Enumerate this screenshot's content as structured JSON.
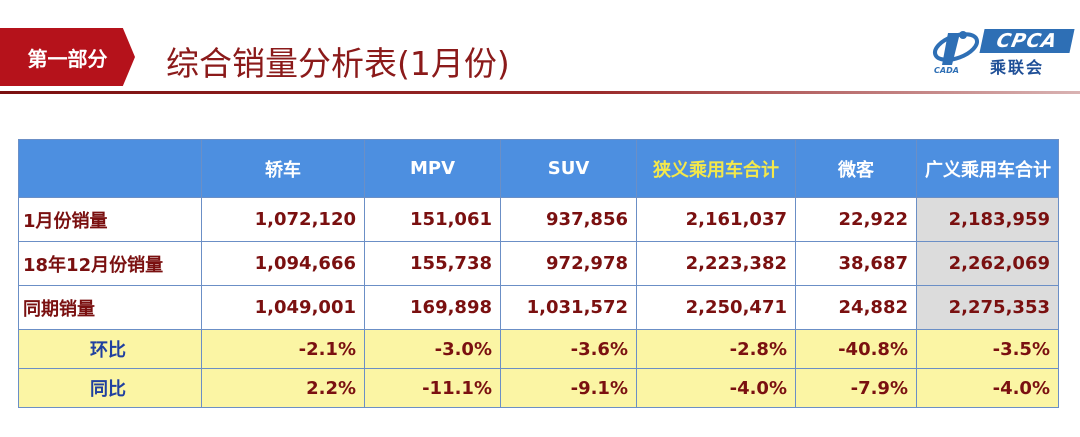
{
  "header": {
    "section_tag": "第一部分",
    "title": "综合销量分析表(1月份)",
    "logo": {
      "mark_text": "CPCA",
      "name_cn": "乘联会",
      "icon": "cpca-swoosh-icon",
      "brand_color": "#2e6fb5"
    }
  },
  "colors": {
    "accent_red": "#b5121b",
    "title_red": "#8b1a1a",
    "header_blue": "#4d8fe0",
    "highlight_yellow_text": "#f4e84a",
    "pct_row_bg": "#fbf5a4",
    "total_col_bg": "#dcdcdc",
    "value_text": "#7a1010",
    "pct_label_text": "#2040a0"
  },
  "table": {
    "columns": [
      "",
      "轿车",
      "MPV",
      "SUV",
      "狭义乘用车合计",
      "微客",
      "广义乘用车合计"
    ],
    "rows": [
      {
        "label": "1月份销量",
        "values": [
          "1,072,120",
          "151,061",
          "937,856",
          "2,161,037",
          "22,922",
          "2,183,959"
        ]
      },
      {
        "label": "18年12月份销量",
        "values": [
          "1,094,666",
          "155,738",
          "972,978",
          "2,223,382",
          "38,687",
          "2,262,069"
        ]
      },
      {
        "label": "同期销量",
        "values": [
          "1,049,001",
          "169,898",
          "1,031,572",
          "2,250,471",
          "24,882",
          "2,275,353"
        ]
      },
      {
        "label": "环比",
        "values": [
          "-2.1%",
          "-3.0%",
          "-3.6%",
          "-2.8%",
          "-40.8%",
          "-3.5%"
        ]
      },
      {
        "label": "同比",
        "values": [
          "2.2%",
          "-11.1%",
          "-9.1%",
          "-4.0%",
          "-7.9%",
          "-4.0%"
        ]
      }
    ]
  }
}
